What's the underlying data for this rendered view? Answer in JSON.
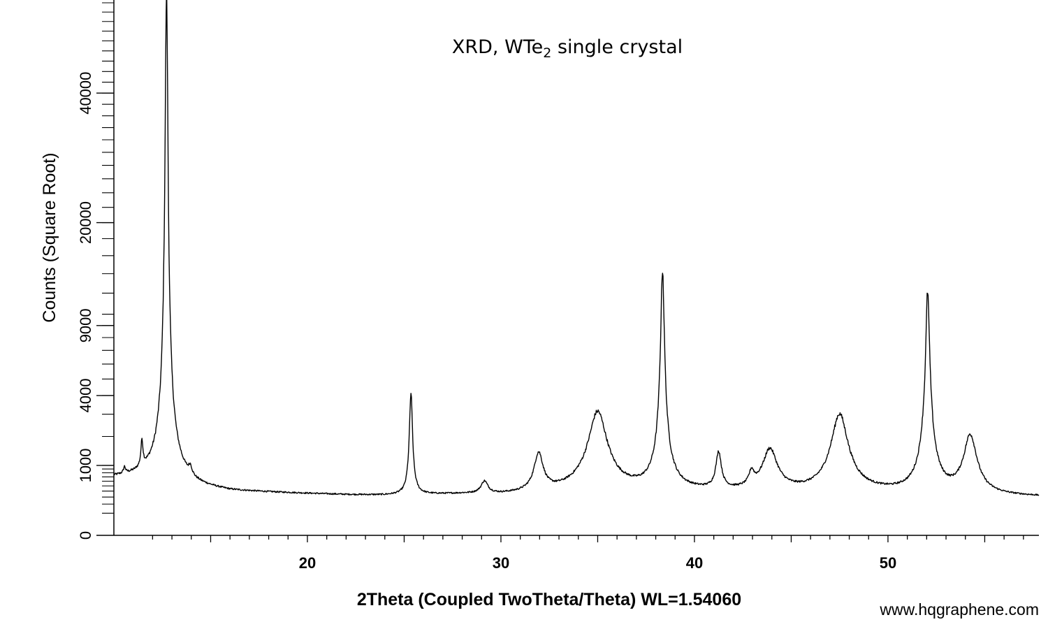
{
  "chart_data": {
    "type": "line",
    "title": "XRD, WTe",
    "title_subscript": "2",
    "title_suffix": " single crystal",
    "xlabel": "2Theta (Coupled TwoTheta/Theta) WL=1.54060",
    "ylabel": "Counts (Square Root)",
    "y_scale": "sqrt",
    "xlim": [
      10,
      57.8
    ],
    "ylim": [
      0,
      58000
    ],
    "x_ticks": [
      20,
      30,
      40,
      50
    ],
    "x_tick_labels": [
      "20",
      "30",
      "40",
      "50"
    ],
    "y_ticks": [
      0,
      1000,
      4000,
      9000,
      20000,
      40000
    ],
    "y_tick_labels": [
      "0",
      "1000",
      "4000",
      "9000",
      "20000",
      "40000"
    ],
    "grid": false,
    "line_color": "#000000",
    "series": [
      {
        "background": [
          [
            10.0,
            680
          ],
          [
            12.5,
            720
          ],
          [
            14.0,
            470
          ],
          [
            16,
            390
          ],
          [
            18,
            370
          ],
          [
            20,
            350
          ],
          [
            22,
            330
          ],
          [
            24,
            320
          ],
          [
            26,
            330
          ],
          [
            28,
            340
          ],
          [
            30,
            330
          ],
          [
            32,
            350
          ],
          [
            34,
            420
          ],
          [
            36,
            420
          ],
          [
            38,
            400
          ],
          [
            40,
            390
          ],
          [
            42,
            380
          ],
          [
            44,
            390
          ],
          [
            46,
            380
          ],
          [
            48,
            390
          ],
          [
            50,
            370
          ],
          [
            52,
            350
          ],
          [
            54,
            330
          ],
          [
            56,
            310
          ],
          [
            57.8,
            300
          ]
        ],
        "peaks": [
          {
            "x": 10.55,
            "height": 170,
            "width": 0.06
          },
          {
            "x": 11.45,
            "height": 900,
            "width": 0.06
          },
          {
            "x": 12.72,
            "height": 58000,
            "width": 0.075
          },
          {
            "x": 12.72,
            "height": 1800,
            "width": 0.35
          },
          {
            "x": 13.95,
            "height": 230,
            "width": 0.1
          },
          {
            "x": 25.35,
            "height": 3800,
            "width": 0.08
          },
          {
            "x": 29.15,
            "height": 240,
            "width": 0.2
          },
          {
            "x": 31.95,
            "height": 1000,
            "width": 0.25
          },
          {
            "x": 35.0,
            "height": 2700,
            "width": 0.5
          },
          {
            "x": 38.35,
            "height": 12800,
            "width": 0.1
          },
          {
            "x": 38.35,
            "height": 1200,
            "width": 0.35
          },
          {
            "x": 41.25,
            "height": 980,
            "width": 0.15
          },
          {
            "x": 42.95,
            "height": 330,
            "width": 0.15
          },
          {
            "x": 43.9,
            "height": 1100,
            "width": 0.4
          },
          {
            "x": 47.5,
            "height": 2600,
            "width": 0.45
          },
          {
            "x": 52.05,
            "height": 9600,
            "width": 0.1
          },
          {
            "x": 52.05,
            "height": 2200,
            "width": 0.3
          },
          {
            "x": 54.25,
            "height": 1700,
            "width": 0.35
          }
        ]
      }
    ]
  },
  "watermark": "www.hqgraphene.com"
}
